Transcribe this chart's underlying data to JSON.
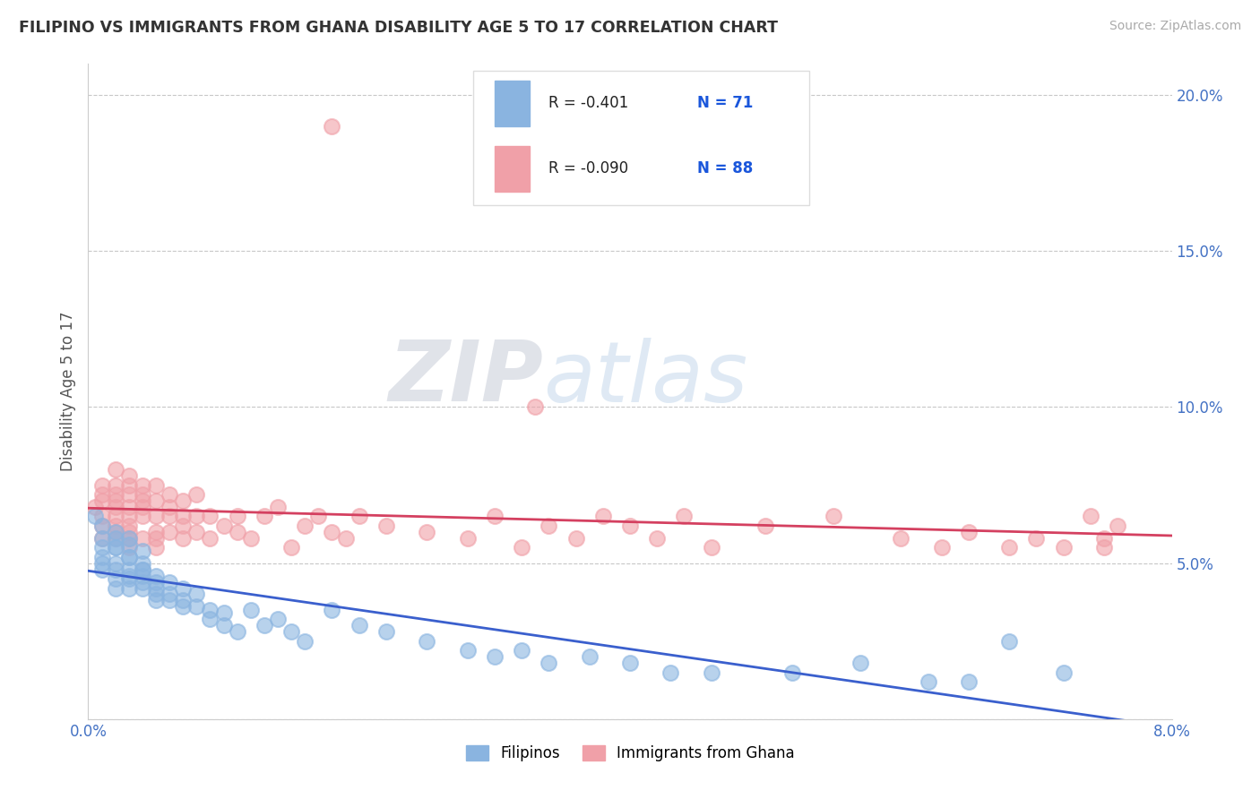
{
  "title": "FILIPINO VS IMMIGRANTS FROM GHANA DISABILITY AGE 5 TO 17 CORRELATION CHART",
  "source": "Source: ZipAtlas.com",
  "ylabel": "Disability Age 5 to 17",
  "xlim": [
    0.0,
    0.08
  ],
  "ylim": [
    0.0,
    0.21
  ],
  "filipino_color": "#8ab4e0",
  "ghana_color": "#f0a0a8",
  "filipino_line_color": "#3a5fcd",
  "ghana_line_color": "#d44060",
  "legend_R_filipino": "-0.401",
  "legend_N_filipino": "71",
  "legend_R_ghana": "-0.090",
  "legend_N_ghana": "88",
  "watermark_zip": "ZIP",
  "watermark_atlas": "atlas",
  "filipino_x": [
    0.0005,
    0.001,
    0.001,
    0.001,
    0.001,
    0.001,
    0.001,
    0.002,
    0.002,
    0.002,
    0.002,
    0.002,
    0.002,
    0.002,
    0.002,
    0.003,
    0.003,
    0.003,
    0.003,
    0.003,
    0.003,
    0.003,
    0.003,
    0.004,
    0.004,
    0.004,
    0.004,
    0.004,
    0.004,
    0.004,
    0.005,
    0.005,
    0.005,
    0.005,
    0.005,
    0.006,
    0.006,
    0.006,
    0.007,
    0.007,
    0.007,
    0.008,
    0.008,
    0.009,
    0.009,
    0.01,
    0.01,
    0.011,
    0.012,
    0.013,
    0.014,
    0.015,
    0.016,
    0.018,
    0.02,
    0.022,
    0.025,
    0.028,
    0.03,
    0.032,
    0.034,
    0.037,
    0.04,
    0.043,
    0.046,
    0.052,
    0.057,
    0.062,
    0.065,
    0.068,
    0.072
  ],
  "filipino_y": [
    0.065,
    0.058,
    0.055,
    0.052,
    0.05,
    0.048,
    0.062,
    0.055,
    0.05,
    0.048,
    0.045,
    0.06,
    0.055,
    0.042,
    0.058,
    0.052,
    0.048,
    0.045,
    0.042,
    0.058,
    0.052,
    0.056,
    0.046,
    0.048,
    0.044,
    0.05,
    0.054,
    0.046,
    0.042,
    0.048,
    0.044,
    0.042,
    0.046,
    0.04,
    0.038,
    0.044,
    0.04,
    0.038,
    0.036,
    0.042,
    0.038,
    0.036,
    0.04,
    0.035,
    0.032,
    0.034,
    0.03,
    0.028,
    0.035,
    0.03,
    0.032,
    0.028,
    0.025,
    0.035,
    0.03,
    0.028,
    0.025,
    0.022,
    0.02,
    0.022,
    0.018,
    0.02,
    0.018,
    0.015,
    0.015,
    0.015,
    0.018,
    0.012,
    0.012,
    0.025,
    0.015
  ],
  "ghana_x": [
    0.0005,
    0.001,
    0.001,
    0.001,
    0.001,
    0.001,
    0.001,
    0.002,
    0.002,
    0.002,
    0.002,
    0.002,
    0.002,
    0.002,
    0.002,
    0.002,
    0.003,
    0.003,
    0.003,
    0.003,
    0.003,
    0.003,
    0.003,
    0.003,
    0.003,
    0.004,
    0.004,
    0.004,
    0.004,
    0.004,
    0.004,
    0.005,
    0.005,
    0.005,
    0.005,
    0.005,
    0.005,
    0.006,
    0.006,
    0.006,
    0.006,
    0.007,
    0.007,
    0.007,
    0.007,
    0.008,
    0.008,
    0.008,
    0.009,
    0.009,
    0.01,
    0.011,
    0.011,
    0.012,
    0.013,
    0.014,
    0.015,
    0.016,
    0.017,
    0.018,
    0.019,
    0.02,
    0.022,
    0.025,
    0.028,
    0.03,
    0.032,
    0.034,
    0.036,
    0.038,
    0.04,
    0.042,
    0.044,
    0.046,
    0.05,
    0.055,
    0.06,
    0.063,
    0.065,
    0.068,
    0.07,
    0.072,
    0.074,
    0.075,
    0.075,
    0.076,
    0.018,
    0.033
  ],
  "ghana_y": [
    0.068,
    0.07,
    0.065,
    0.062,
    0.072,
    0.058,
    0.075,
    0.065,
    0.06,
    0.072,
    0.058,
    0.075,
    0.08,
    0.07,
    0.068,
    0.062,
    0.072,
    0.065,
    0.06,
    0.055,
    0.068,
    0.075,
    0.058,
    0.078,
    0.062,
    0.07,
    0.065,
    0.072,
    0.058,
    0.075,
    0.068,
    0.065,
    0.07,
    0.06,
    0.055,
    0.075,
    0.058,
    0.065,
    0.06,
    0.072,
    0.068,
    0.062,
    0.065,
    0.058,
    0.07,
    0.06,
    0.065,
    0.072,
    0.058,
    0.065,
    0.062,
    0.065,
    0.06,
    0.058,
    0.065,
    0.068,
    0.055,
    0.062,
    0.065,
    0.06,
    0.058,
    0.065,
    0.062,
    0.06,
    0.058,
    0.065,
    0.055,
    0.062,
    0.058,
    0.065,
    0.062,
    0.058,
    0.065,
    0.055,
    0.062,
    0.065,
    0.058,
    0.055,
    0.06,
    0.055,
    0.058,
    0.055,
    0.065,
    0.058,
    0.055,
    0.062,
    0.19,
    0.1
  ]
}
